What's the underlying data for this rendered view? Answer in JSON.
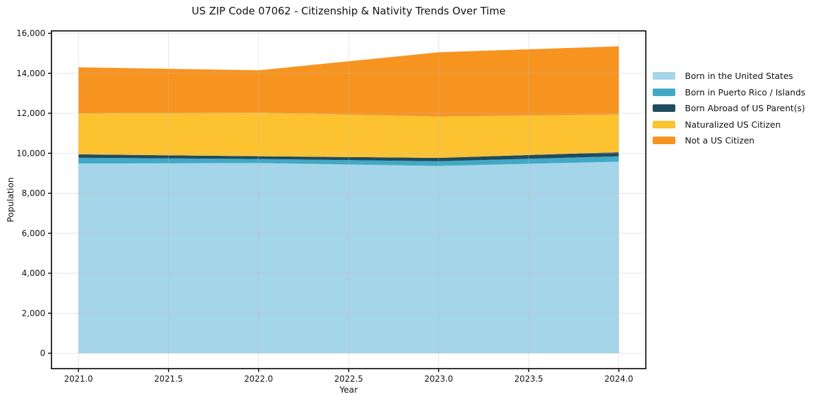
{
  "chart_data": {
    "type": "area",
    "stacked": true,
    "title": "US ZIP Code 07062 - Citizenship & Nativity Trends Over Time",
    "xlabel": "Year",
    "ylabel": "Population",
    "x": [
      2021,
      2022,
      2023,
      2024
    ],
    "series": [
      {
        "name": "Born in the United States",
        "color": "#a5d5e8",
        "values": [
          9490,
          9510,
          9370,
          9580
        ]
      },
      {
        "name": "Born in Puerto Rico / Islands",
        "color": "#41a9c6",
        "values": [
          285,
          205,
          230,
          270
        ]
      },
      {
        "name": "Born Abroad of US Parent(s)",
        "color": "#1f4b5e",
        "values": [
          170,
          135,
          170,
          200
        ]
      },
      {
        "name": "Naturalized US Citizen",
        "color": "#fcc230",
        "values": [
          2055,
          2180,
          2070,
          1890
        ]
      },
      {
        "name": "Not a US Citizen",
        "color": "#f79420",
        "values": [
          2300,
          2120,
          3210,
          3410
        ]
      }
    ],
    "stack_totals": [
      14300,
      14150,
      15050,
      15350
    ],
    "xlim": [
      2020.85,
      2024.15
    ],
    "ylim": [
      -770,
      16120
    ],
    "xticks": {
      "values": [
        2021,
        2021.5,
        2022,
        2022.5,
        2023,
        2023.5,
        2024
      ],
      "labels": [
        "2021.0",
        "2021.5",
        "2022.0",
        "2022.5",
        "2023.0",
        "2023.5",
        "2024.0"
      ]
    },
    "yticks": {
      "values": [
        0,
        2000,
        4000,
        6000,
        8000,
        10000,
        12000,
        14000,
        16000
      ],
      "labels": [
        "0",
        "2,000",
        "4,000",
        "6,000",
        "8,000",
        "10,000",
        "12,000",
        "14,000",
        "16,000"
      ]
    },
    "grid": true,
    "legend_position": "outside-right"
  },
  "style": {
    "background": "#ffffff",
    "grid_color": "#bdbdbd",
    "spine_color": "#000000",
    "text_color": "#111111"
  }
}
